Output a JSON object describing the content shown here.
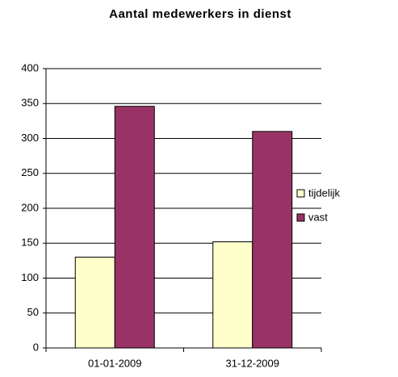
{
  "chart_data": {
    "type": "bar",
    "title": "Aantal medewerkers in dienst",
    "categories": [
      "01-01-2009",
      "31-12-2009"
    ],
    "series": [
      {
        "name": "tijdelijk",
        "color": "#ffffcc",
        "values": [
          130,
          152
        ]
      },
      {
        "name": "vast",
        "color": "#993366",
        "values": [
          346,
          310
        ]
      }
    ],
    "ylim": [
      0,
      400
    ],
    "yticks": [
      0,
      50,
      100,
      150,
      200,
      250,
      300,
      350,
      400
    ],
    "grid": true,
    "legend": "right"
  }
}
